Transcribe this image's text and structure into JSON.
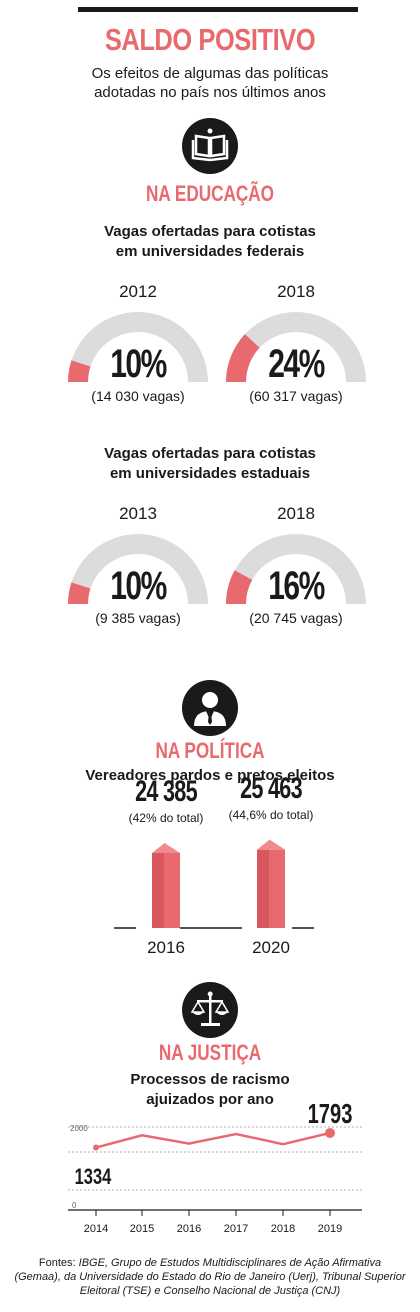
{
  "header": {
    "title": "SALDO POSITIVO",
    "subtitle_line1": "Os efeitos de algumas das políticas",
    "subtitle_line2": "adotadas no país nos últimos anos"
  },
  "education": {
    "section_title": "NA EDUCAÇÃO",
    "icon": "book-icon",
    "federal_title_line1": "Vagas ofertadas para cotistas",
    "federal_title_line2": "em universidades federais",
    "state_title_line1": "Vagas ofertadas para cotistas",
    "state_title_line2": "em universidades estaduais"
  },
  "politics": {
    "section_title": "NA POLÍTICA",
    "icon": "person-suit-icon",
    "chart_title": "Vereadores pardos e pretos eleitos"
  },
  "justice": {
    "section_title": "NA JUSTIÇA",
    "icon": "scales-icon",
    "chart_title_line1": "Processos de racismo",
    "chart_title_line2": "ajuizados por ano"
  },
  "footer": {
    "prefix": "Fontes: ",
    "line1": "IBGE, Grupo de Estudos Multidisciplinares de Ação Afirmativa",
    "line2": "(Gemaa), da Universidade do Estado do Rio de Janeiro (Uerj), Tribunal Superior",
    "line3": "Eleitoral (TSE) e Conselho Nacional de Justiça (CNJ)"
  },
  "colors": {
    "accent": "#e86a6e",
    "gauge_bg": "#dcdcdc",
    "dark": "#1a1a1a"
  },
  "chart_data": [
    {
      "type": "gauge",
      "title": "Vagas ofertadas para cotistas em universidades federais",
      "items": [
        {
          "year": "2012",
          "percent": 10,
          "label": "10%",
          "note": "(14 030 vagas)"
        },
        {
          "year": "2018",
          "percent": 24,
          "label": "24%",
          "note": "(60 317 vagas)"
        }
      ]
    },
    {
      "type": "gauge",
      "title": "Vagas ofertadas para cotistas em universidades estaduais",
      "items": [
        {
          "year": "2013",
          "percent": 10,
          "label": "10%",
          "note": "(9 385 vagas)"
        },
        {
          "year": "2018",
          "percent": 16,
          "label": "16%",
          "note": "(20 745 vagas)"
        }
      ]
    },
    {
      "type": "bar",
      "title": "Vereadores pardos e pretos eleitos",
      "categories": [
        "2016",
        "2020"
      ],
      "values": [
        24385,
        25463
      ],
      "labels": [
        "24 385",
        "25 463"
      ],
      "notes": [
        "(42% do total)",
        "(44,6% do total)"
      ]
    },
    {
      "type": "line",
      "title": "Processos de racismo ajuizados por ano",
      "x": [
        "2014",
        "2015",
        "2016",
        "2017",
        "2018",
        "2019"
      ],
      "y": [
        1334,
        1720,
        1460,
        1760,
        1440,
        1793
      ],
      "point_labels": {
        "first": "1334",
        "last": "1793"
      },
      "yticks": [
        "2000",
        "1000",
        "0"
      ],
      "ylim": [
        0,
        2200
      ],
      "grid": true
    }
  ]
}
